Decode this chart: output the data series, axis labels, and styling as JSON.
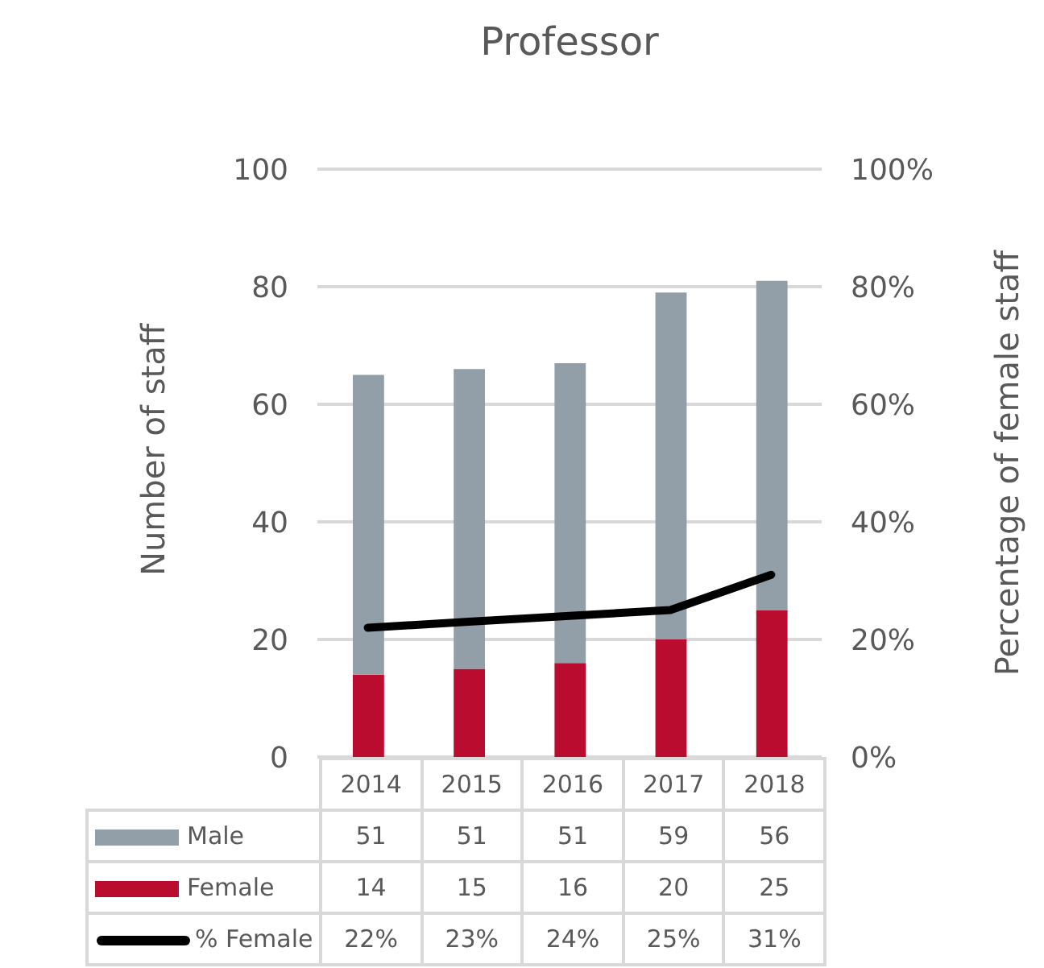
{
  "chart_data": {
    "type": "bar",
    "title": "Professor",
    "ylabel": "Number of staff",
    "y2label": "Percentage of female staff",
    "categories": [
      "2014",
      "2015",
      "2016",
      "2017",
      "2018"
    ],
    "stacked": true,
    "series": [
      {
        "name": "Female",
        "color": "#ba0c2f",
        "values": [
          14,
          15,
          16,
          20,
          25
        ],
        "value_labels": [
          "14",
          "15",
          "16",
          "20",
          "25"
        ]
      },
      {
        "name": "Male",
        "color": "#939fa8",
        "values": [
          51,
          51,
          51,
          59,
          56
        ],
        "value_labels": [
          "51",
          "51",
          "51",
          "59",
          "56"
        ]
      },
      {
        "name": "% Female",
        "type": "line",
        "axis": "y2",
        "color": "#000000",
        "values": [
          22,
          23,
          24,
          25,
          31
        ],
        "value_labels": [
          "22%",
          "23%",
          "24%",
          "25%",
          "31%"
        ]
      }
    ],
    "ylim": [
      0,
      100
    ],
    "yticks": [
      0,
      20,
      40,
      60,
      80,
      100
    ],
    "y2lim": [
      0,
      100
    ],
    "y2ticks": [
      {
        "value": 0,
        "label": "0%"
      },
      {
        "value": 20,
        "label": "20%"
      },
      {
        "value": 40,
        "label": "40%"
      },
      {
        "value": 60,
        "label": "60%"
      },
      {
        "value": 80,
        "label": "80%"
      },
      {
        "value": 100,
        "label": "100%"
      }
    ],
    "grid": "y",
    "legend": "bottom",
    "marker": "none",
    "line_style": "solid"
  }
}
